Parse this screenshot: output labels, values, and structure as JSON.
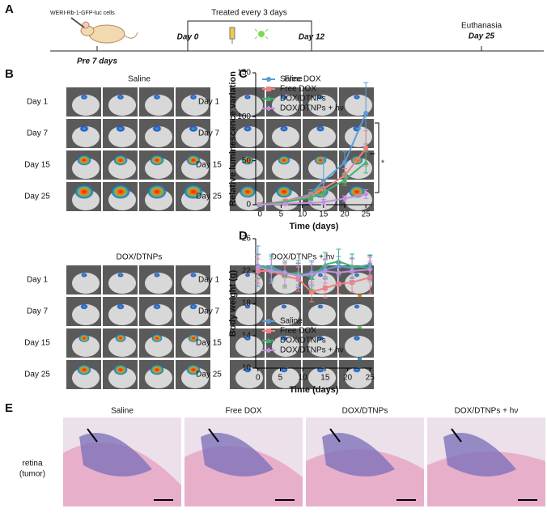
{
  "panel_labels": [
    "A",
    "B",
    "C",
    "D",
    "E"
  ],
  "timeline": {
    "cells": "WERI-Rb-1-GFP-luc cells",
    "pre": "Pre 7 days",
    "treated": "Treated every 3 days",
    "day0": "Day 0",
    "day12": "Day 12",
    "end_label": "Euthanasia",
    "end_day": "Day 25"
  },
  "imaging": {
    "groups": [
      {
        "title": "Saline",
        "rows": [
          "Day 1",
          "Day 7",
          "Day 15",
          "Day 25"
        ]
      },
      {
        "title": "Free DOX",
        "rows": [
          "Day 1",
          "Day 7",
          "Day 15",
          "Day 25"
        ]
      },
      {
        "title": "DOX/DTNPs",
        "rows": [
          "Day 1",
          "Day 7",
          "Day 15",
          "Day 25"
        ]
      },
      {
        "title": "DOX/DTNPs + hν",
        "rows": [
          "Day 1",
          "Day 7",
          "Day 15",
          "Day 25"
        ]
      }
    ]
  },
  "chart_data": [
    {
      "type": "line",
      "x_label": "Time (days)",
      "y_label": "Relative luminescence variation",
      "x": [
        0,
        6,
        12,
        15,
        20,
        25
      ],
      "series": [
        {
          "name": "Saline",
          "color": "#5b9bd5",
          "values": [
            0,
            4,
            12,
            27,
            48,
            104
          ],
          "errors": [
            1,
            2,
            5,
            27,
            12,
            35
          ]
        },
        {
          "name": "Free DOX",
          "color": "#f08080",
          "values": [
            0,
            4,
            10,
            18,
            33,
            64
          ],
          "errors": [
            1,
            1,
            4,
            8,
            8,
            20
          ]
        },
        {
          "name": "DOX/DTNPs",
          "color": "#3cb371",
          "values": [
            0,
            3,
            8,
            14,
            28,
            48
          ],
          "errors": [
            1,
            1,
            3,
            5,
            6,
            12
          ]
        },
        {
          "name": "DOX/DTNPs + hν",
          "color": "#c38fdf",
          "values": [
            0,
            1,
            2,
            3,
            7,
            12
          ],
          "errors": [
            1,
            1,
            1,
            3,
            3,
            5
          ]
        }
      ],
      "xlim": [
        -1,
        26.5
      ],
      "ylim": [
        0,
        150
      ],
      "xticks": [
        0,
        5,
        10,
        15,
        20,
        25
      ],
      "yticks": [
        0,
        50,
        100,
        150
      ],
      "legend": "upper left",
      "annotation": "*"
    },
    {
      "type": "line",
      "x_label": "Time (days)",
      "y_label": "Body weight (g)",
      "x": [
        0,
        3,
        6,
        9,
        12,
        15,
        18,
        21,
        25
      ],
      "series": [
        {
          "name": "Saline",
          "color": "#5b9bd5",
          "values": [
            22.6,
            22.5,
            21.8,
            21.5,
            21.8,
            22.2,
            22.6,
            22.4,
            22.8
          ],
          "errors": [
            2.5,
            1.5,
            1.5,
            1.5,
            1.5,
            1.2,
            1.2,
            1.2,
            1.2
          ]
        },
        {
          "name": "Free DOX",
          "color": "#f08080",
          "values": [
            22.0,
            22.0,
            21.4,
            21.0,
            19.4,
            19.9,
            20.4,
            20.6,
            21.2
          ],
          "errors": [
            1.5,
            1.5,
            1.5,
            1.5,
            1.2,
            1.2,
            1.2,
            1.2,
            2.0
          ]
        },
        {
          "name": "DOX/DTNPs",
          "color": "#3cb371",
          "values": [
            22.6,
            22.3,
            21.6,
            21.8,
            21.2,
            22.8,
            23.2,
            22.6,
            22.4
          ],
          "errors": [
            1.5,
            1.5,
            1.5,
            1.5,
            1.5,
            1.5,
            1.5,
            1.5,
            1.5
          ]
        },
        {
          "name": "DOX/DTNPs + hν",
          "color": "#c38fdf",
          "values": [
            22.5,
            22.0,
            21.8,
            21.4,
            21.6,
            22.0,
            21.8,
            22.0,
            22.2
          ],
          "errors": [
            1.5,
            1.5,
            1.5,
            1.5,
            1.5,
            1.5,
            1.5,
            1.5,
            1.5
          ]
        }
      ],
      "xlim": [
        -0.5,
        25.5
      ],
      "ylim": [
        10,
        26
      ],
      "xticks": [
        0,
        5,
        10,
        15,
        20,
        25
      ],
      "yticks": [
        10,
        14,
        18,
        22,
        26
      ],
      "legend": "lower left",
      "annotation": "*"
    }
  ],
  "histology": {
    "row_label": [
      "retina",
      "(tumor)"
    ],
    "titles": [
      "Saline",
      "Free DOX",
      "DOX/DTNPs",
      "DOX/DTNPs + hν"
    ]
  }
}
